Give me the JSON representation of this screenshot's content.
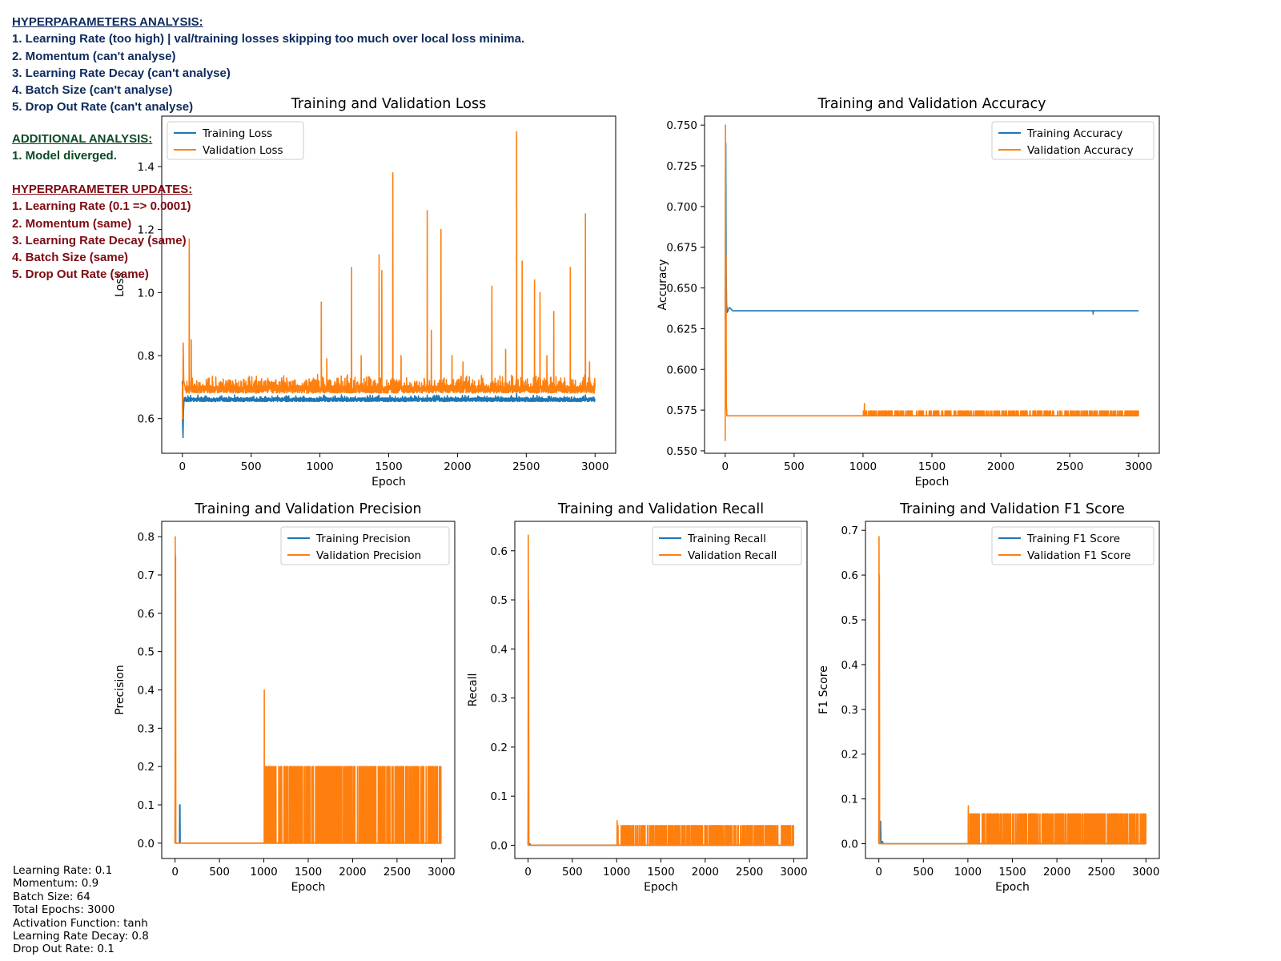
{
  "notes": {
    "analysis_header": "HYPERPARAMETERS ANALYSIS:",
    "analysis": [
      "1. Learning Rate (too high) | val/training losses skipping too much over local loss minima.",
      "2. Momentum (can't analyse)",
      "3. Learning Rate Decay (can't analyse)",
      "4. Batch Size (can't analyse)",
      "5. Drop Out Rate (can't analyse)"
    ],
    "additional_header": "ADDITIONAL ANALYSIS:",
    "additional": [
      "1. Model diverged."
    ],
    "updates_header": "HYPERPARAMETER UPDATES:",
    "updates": [
      "1. Learning Rate (0.1 => 0.0001)",
      "2. Momentum (same)",
      "3. Learning Rate Decay (same)",
      "4. Batch Size (same)",
      "5. Drop Out Rate (same)"
    ],
    "colors": {
      "analysis": "#0d2a5c",
      "additional": "#0b4a24",
      "updates": "#7d0a12"
    }
  },
  "config": [
    "Learning Rate: 0.1",
    "Momentum: 0.9",
    "Batch Size: 64",
    "Total Epochs: 3000",
    "Activation Function: tanh",
    "Learning Rate Decay: 0.8",
    "Drop Out Rate: 0.1"
  ],
  "colors": {
    "training": "#1f77b4",
    "validation": "#ff7f0e"
  },
  "chart_data": [
    {
      "id": "loss",
      "type": "line",
      "title": "Training and Validation Loss",
      "xlabel": "Epoch",
      "ylabel": "Loss",
      "xlim": [
        -150,
        3150
      ],
      "ylim": [
        0.49,
        1.56
      ],
      "xticks": [
        0,
        500,
        1000,
        1500,
        2000,
        2500,
        3000
      ],
      "yticks": [
        0.6,
        0.8,
        1.0,
        1.2,
        1.4
      ],
      "legend": "top-left",
      "grid": false,
      "series": [
        {
          "name": "Training Loss",
          "role": "training",
          "base": 0.66,
          "noise": 0.006,
          "jitter_prob": 0.12,
          "jitter": 0.01,
          "early": [
            [
              0,
              0.72
            ],
            [
              2,
              0.58
            ],
            [
              5,
              0.54
            ],
            [
              8,
              0.62
            ],
            [
              12,
              0.66
            ]
          ],
          "spikes": [
            [
              380,
              0.675
            ],
            [
              1030,
              0.675
            ],
            [
              1430,
              0.675
            ],
            [
              1780,
              0.675
            ],
            [
              2430,
              0.68
            ],
            [
              2930,
              0.675
            ]
          ]
        },
        {
          "name": "Validation Loss",
          "role": "validation",
          "base": 0.693,
          "noise": 0.012,
          "jitter_prob": 0.22,
          "jitter": 0.035,
          "early": [
            [
              0,
              0.71
            ],
            [
              3,
              0.6
            ],
            [
              6,
              0.84
            ],
            [
              10,
              0.72
            ],
            [
              20,
              0.7
            ]
          ],
          "spikes": [
            [
              50,
              1.17
            ],
            [
              65,
              0.85
            ],
            [
              1010,
              0.97
            ],
            [
              1050,
              0.79
            ],
            [
              1230,
              1.08
            ],
            [
              1300,
              0.8
            ],
            [
              1430,
              1.12
            ],
            [
              1450,
              1.07
            ],
            [
              1530,
              1.38
            ],
            [
              1590,
              0.8
            ],
            [
              1780,
              1.26
            ],
            [
              1810,
              0.88
            ],
            [
              1880,
              1.2
            ],
            [
              1960,
              0.8
            ],
            [
              2040,
              0.78
            ],
            [
              2250,
              1.02
            ],
            [
              2350,
              0.82
            ],
            [
              2430,
              1.51
            ],
            [
              2470,
              1.1
            ],
            [
              2560,
              1.04
            ],
            [
              2600,
              1.0
            ],
            [
              2650,
              0.8
            ],
            [
              2700,
              0.94
            ],
            [
              2820,
              1.08
            ],
            [
              2930,
              1.25
            ],
            [
              2960,
              0.78
            ]
          ]
        }
      ]
    },
    {
      "id": "accuracy",
      "type": "line",
      "title": "Training and Validation Accuracy",
      "xlabel": "Epoch",
      "ylabel": "Accuracy",
      "xlim": [
        -150,
        3150
      ],
      "ylim": [
        0.5485,
        0.7555
      ],
      "xticks": [
        0,
        500,
        1000,
        1500,
        2000,
        2500,
        3000
      ],
      "yticks": [
        0.55,
        0.575,
        0.6,
        0.625,
        0.65,
        0.675,
        0.7,
        0.725,
        0.75
      ],
      "ytick_labels": [
        "0.550",
        "0.575",
        "0.600",
        "0.625",
        "0.650",
        "0.675",
        "0.700",
        "0.725",
        "0.750"
      ],
      "legend": "top-right",
      "grid": false,
      "series": [
        {
          "name": "Training Accuracy",
          "role": "training",
          "base": 0.636,
          "noise": 0.0,
          "jitter_prob": 0.0,
          "jitter": 0.0,
          "early": [
            [
              0,
              0.63
            ],
            [
              2,
              0.72
            ],
            [
              4,
              0.739
            ],
            [
              7,
              0.66
            ],
            [
              10,
              0.64
            ],
            [
              15,
              0.635
            ],
            [
              30,
              0.638
            ],
            [
              55,
              0.636
            ]
          ],
          "spikes": [
            [
              2670,
              0.634
            ]
          ]
        },
        {
          "name": "Validation Accuracy",
          "role": "validation",
          "base": 0.5715,
          "noise": 0.0,
          "jitter_prob": 0.0,
          "jitter": 0.0,
          "early": [
            [
              0,
              0.556
            ],
            [
              2,
              0.75
            ],
            [
              4,
              0.6
            ],
            [
              6,
              0.67
            ],
            [
              8,
              0.58
            ],
            [
              12,
              0.5715
            ]
          ],
          "band_value": 0.5745,
          "band_prob": 0.16,
          "band_start": 1000,
          "spikes": [
            [
              1010,
              0.579
            ]
          ]
        }
      ]
    },
    {
      "id": "precision",
      "type": "line",
      "title": "Training and Validation Precision",
      "xlabel": "Epoch",
      "ylabel": "Precision",
      "xlim": [
        -150,
        3150
      ],
      "ylim": [
        -0.04,
        0.84
      ],
      "xticks": [
        0,
        500,
        1000,
        1500,
        2000,
        2500,
        3000
      ],
      "yticks": [
        0,
        0.1,
        0.2,
        0.3,
        0.4,
        0.5,
        0.6,
        0.7,
        0.8
      ],
      "legend": "top-right",
      "grid": false,
      "series": [
        {
          "name": "Training Precision",
          "role": "training",
          "base": 0.0,
          "noise": 0.0,
          "jitter_prob": 0.0,
          "jitter": 0.0,
          "early": [
            [
              0,
              0.0
            ],
            [
              3,
              0.3
            ],
            [
              5,
              0.0
            ],
            [
              50,
              0.0
            ],
            [
              52,
              0.1
            ],
            [
              56,
              0.1
            ],
            [
              58,
              0.0
            ]
          ],
          "spikes": [
            [
              2650,
              0.04
            ]
          ]
        },
        {
          "name": "Validation Precision",
          "role": "validation",
          "base": 0.0,
          "noise": 0.0,
          "jitter_prob": 0.0,
          "jitter": 0.0,
          "early": [
            [
              0,
              0.0
            ],
            [
              2,
              0.8
            ],
            [
              4,
              0.4
            ],
            [
              6,
              0.75
            ],
            [
              9,
              0.0
            ]
          ],
          "band_value": 0.2,
          "band_prob": 0.16,
          "band_start": 1000,
          "spikes": [
            [
              1005,
              0.4
            ]
          ]
        }
      ]
    },
    {
      "id": "recall",
      "type": "line",
      "title": "Training and Validation Recall",
      "xlabel": "Epoch",
      "ylabel": "Recall",
      "xlim": [
        -150,
        3150
      ],
      "ylim": [
        -0.027,
        0.66
      ],
      "xticks": [
        0,
        500,
        1000,
        1500,
        2000,
        2500,
        3000
      ],
      "yticks": [
        0,
        0.1,
        0.2,
        0.3,
        0.4,
        0.5,
        0.6
      ],
      "legend": "top-right",
      "grid": false,
      "series": [
        {
          "name": "Training Recall",
          "role": "training",
          "base": 0.0,
          "noise": 0.0,
          "jitter_prob": 0.0,
          "jitter": 0.0,
          "early": [
            [
              0,
              0.0
            ],
            [
              3,
              0.2
            ],
            [
              5,
              0.0
            ],
            [
              20,
              0.003
            ],
            [
              30,
              0.0
            ]
          ],
          "spikes": []
        },
        {
          "name": "Validation Recall",
          "role": "validation",
          "base": 0.0,
          "noise": 0.0,
          "jitter_prob": 0.0,
          "jitter": 0.0,
          "early": [
            [
              0,
              0.0
            ],
            [
              2,
              0.632
            ],
            [
              4,
              0.3
            ],
            [
              6,
              0.5
            ],
            [
              9,
              0.0
            ]
          ],
          "band_value": 0.04,
          "band_prob": 0.16,
          "band_start": 1000,
          "spikes": [
            [
              1005,
              0.05
            ]
          ]
        }
      ]
    },
    {
      "id": "f1",
      "type": "line",
      "title": "Training and Validation F1 Score",
      "xlabel": "Epoch",
      "ylabel": "F1 Score",
      "xlim": [
        -150,
        3150
      ],
      "ylim": [
        -0.033,
        0.72
      ],
      "xticks": [
        0,
        500,
        1000,
        1500,
        2000,
        2500,
        3000
      ],
      "yticks": [
        0,
        0.1,
        0.2,
        0.3,
        0.4,
        0.5,
        0.6,
        0.7
      ],
      "legend": "top-right",
      "grid": false,
      "series": [
        {
          "name": "Training F1 Score",
          "role": "training",
          "base": 0.0,
          "noise": 0.0,
          "jitter_prob": 0.0,
          "jitter": 0.0,
          "early": [
            [
              0,
              0.0
            ],
            [
              3,
              0.3
            ],
            [
              5,
              0.0
            ],
            [
              20,
              0.05
            ],
            [
              25,
              0.0
            ],
            [
              40,
              0.005
            ],
            [
              50,
              0.0
            ]
          ],
          "spikes": []
        },
        {
          "name": "Validation F1 Score",
          "role": "validation",
          "base": 0.0,
          "noise": 0.0,
          "jitter_prob": 0.0,
          "jitter": 0.0,
          "early": [
            [
              0,
              0.0
            ],
            [
              2,
              0.686
            ],
            [
              4,
              0.4
            ],
            [
              6,
              0.6
            ],
            [
              9,
              0.0
            ]
          ],
          "band_value": 0.0667,
          "band_prob": 0.16,
          "band_start": 1000,
          "spikes": [
            [
              1005,
              0.085
            ]
          ]
        }
      ]
    }
  ]
}
